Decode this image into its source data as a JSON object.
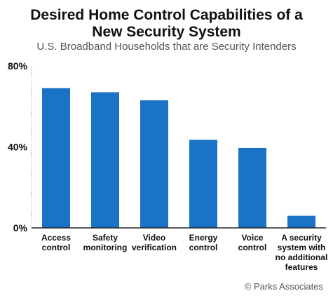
{
  "title_line1": "Desired Home Control Capabilities of a",
  "title_line2": "New Security System",
  "subtitle": "U.S. Broadband Households that are Security Intenders",
  "source": "© Parks Associates",
  "colors": {
    "bar": "#1a73c4",
    "axis": "#222222",
    "text": "#111111"
  },
  "chart_data": {
    "type": "bar",
    "categories": [
      [
        "Access",
        "control"
      ],
      [
        "Safety",
        "monitoring"
      ],
      [
        "Video",
        "verification"
      ],
      [
        "Energy",
        "control"
      ],
      [
        "Voice",
        "control"
      ],
      [
        "A security",
        "system with",
        "no additional",
        "features"
      ]
    ],
    "values": [
      69,
      67,
      63,
      43.5,
      39.5,
      6
    ],
    "ylim": [
      0,
      80
    ],
    "yticks": [
      "0%",
      "40%",
      "80%"
    ],
    "ytick_values": [
      0,
      40,
      80
    ],
    "grid": false
  }
}
